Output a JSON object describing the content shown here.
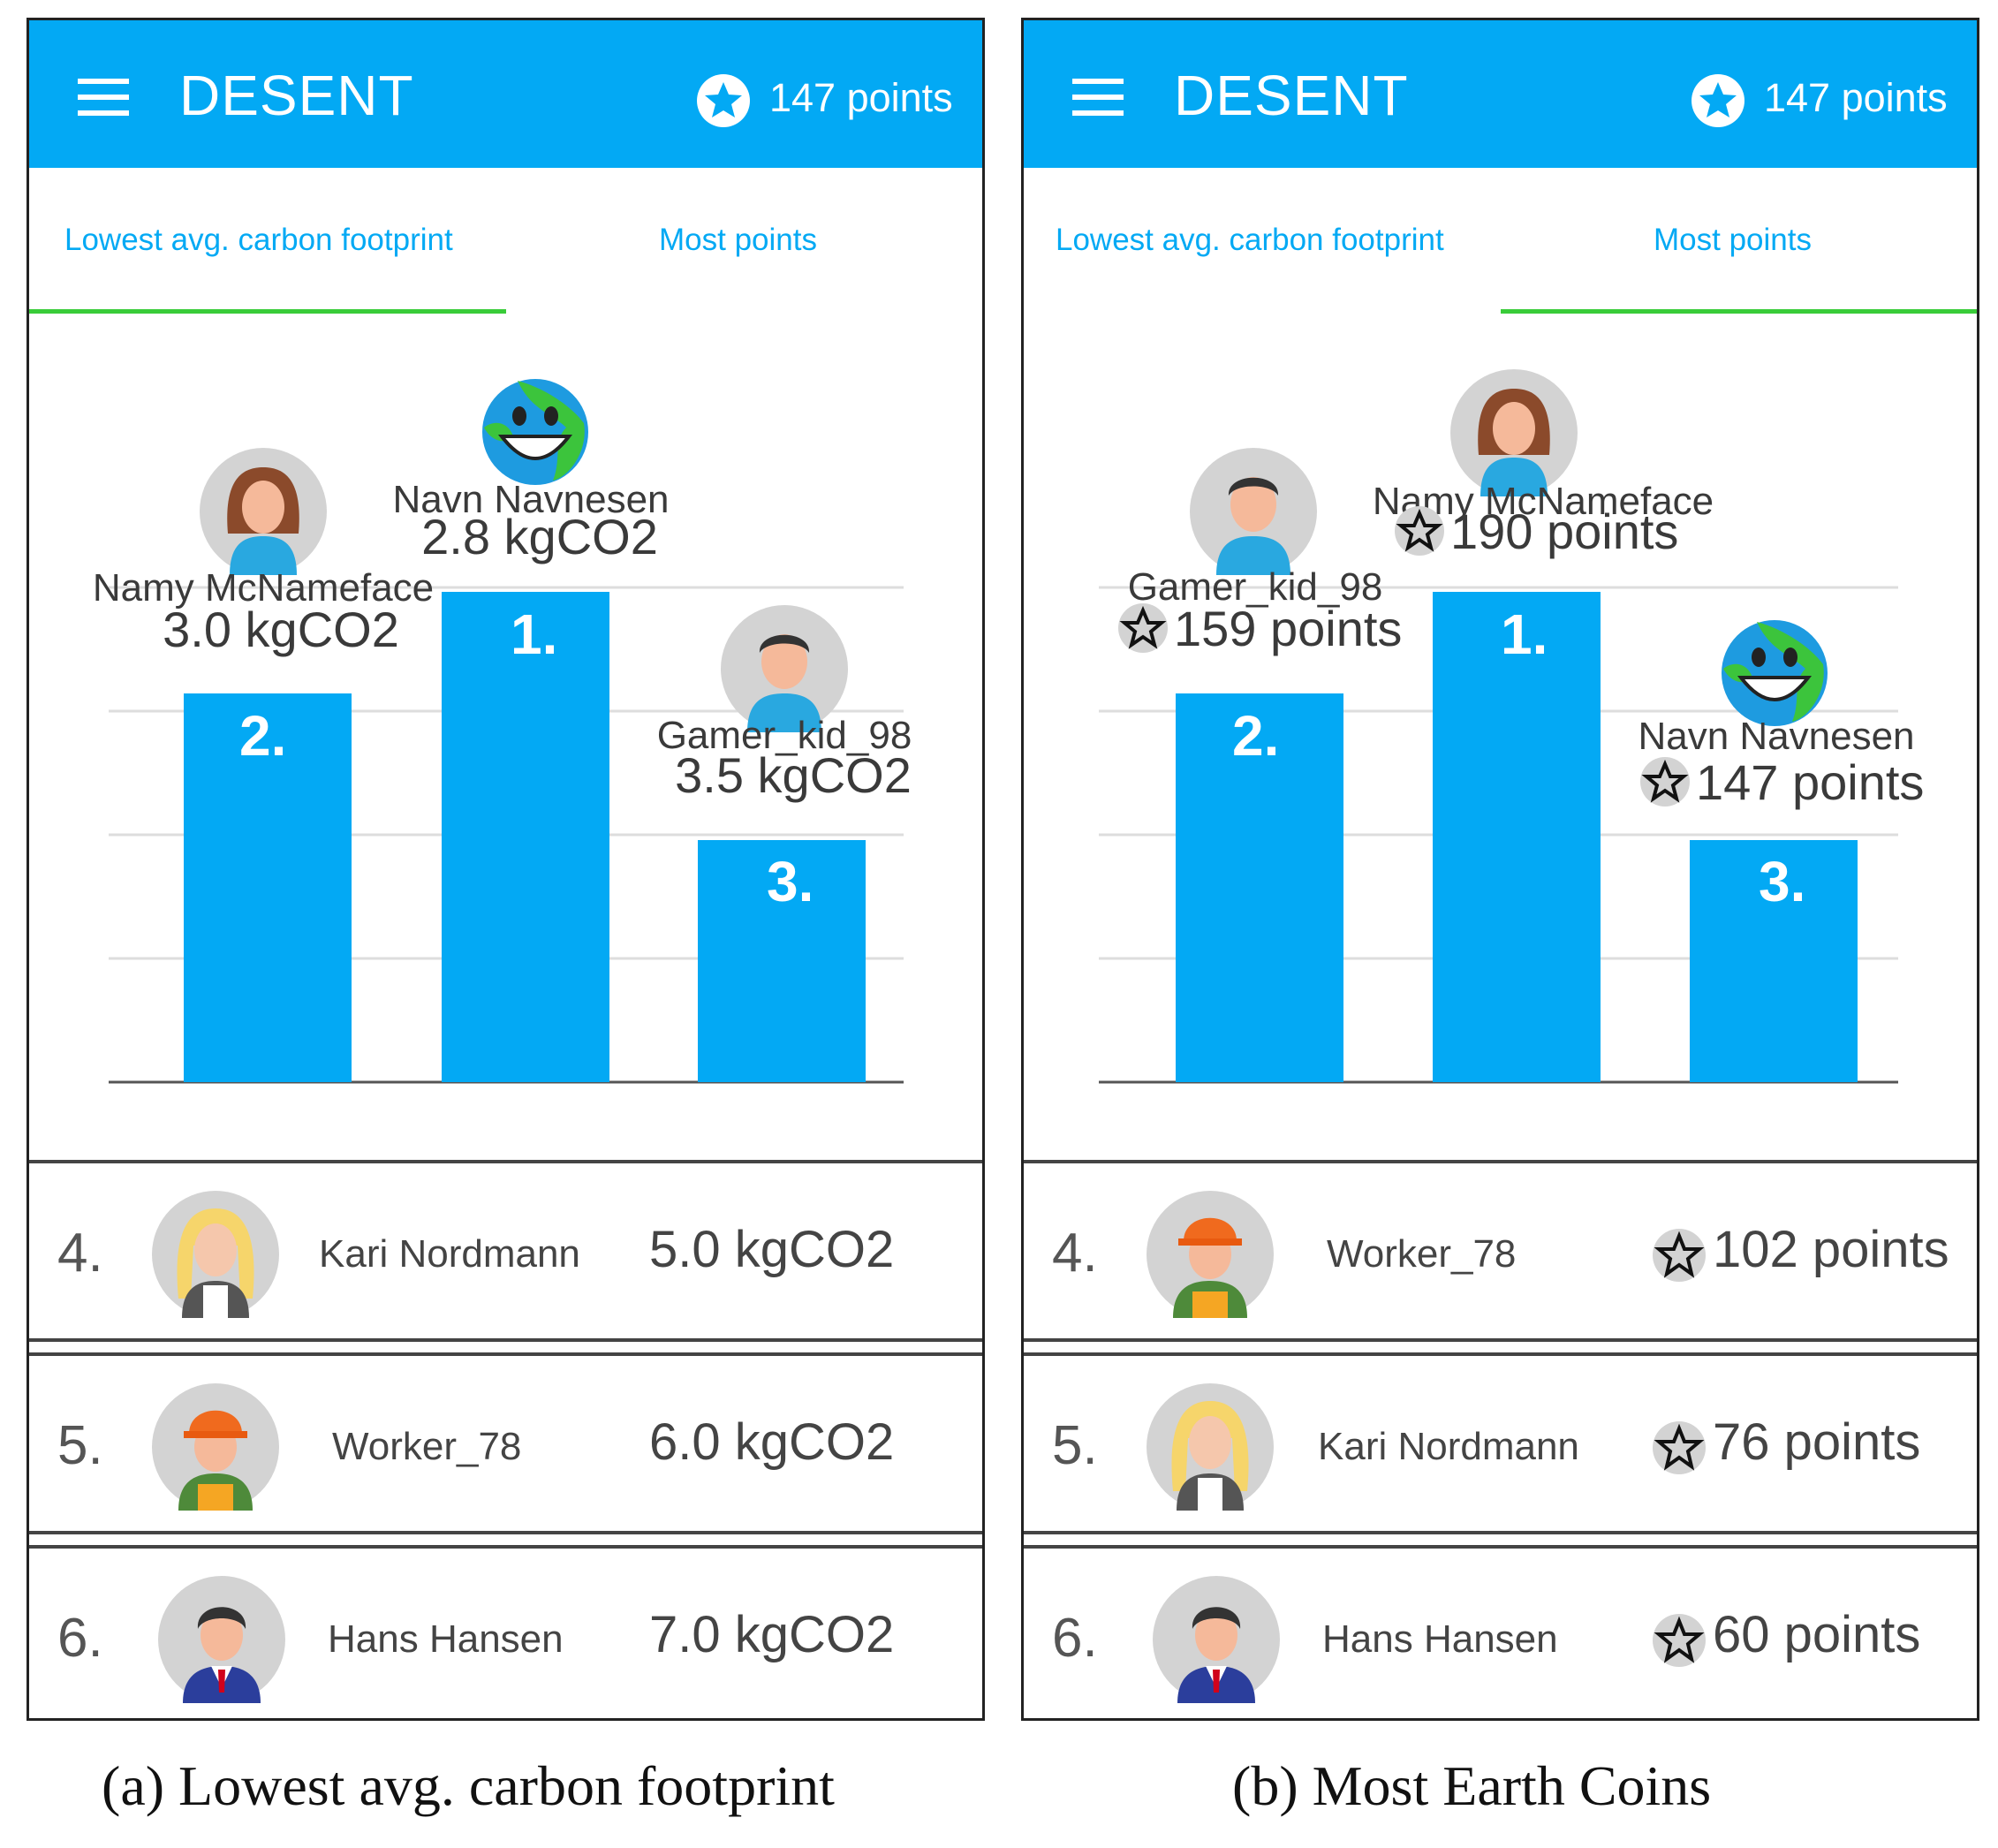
{
  "panels": [
    {
      "id": "a",
      "app_title": "DESENT",
      "user_points": "147 points",
      "tabs": [
        {
          "label": "Lowest avg. carbon footprint",
          "active": true
        },
        {
          "label": "Most points",
          "active": false
        }
      ],
      "podium": [
        {
          "rank": "1.",
          "name": "Navn Navnesen",
          "value": "2.8 kgCO2",
          "avatar": "earth-avatar"
        },
        {
          "rank": "2.",
          "name": "Namy McNameface",
          "value": "3.0 kgCO2",
          "avatar": "woman-avatar"
        },
        {
          "rank": "3.",
          "name": "Gamer_kid_98",
          "value": "3.5 kgCO2",
          "avatar": "boy-avatar"
        }
      ],
      "list": [
        {
          "rank": "4.",
          "name": "Kari Nordmann",
          "value": "5.0 kgCO2",
          "avatar": "blonde-woman-avatar"
        },
        {
          "rank": "5.",
          "name": "Worker_78",
          "value": "6.0 kgCO2",
          "avatar": "worker-avatar"
        },
        {
          "rank": "6.",
          "name": "Hans Hansen",
          "value": "7.0 kgCO2",
          "avatar": "businessman-avatar"
        }
      ],
      "caption": "(a) Lowest avg. carbon footprint"
    },
    {
      "id": "b",
      "app_title": "DESENT",
      "user_points": "147 points",
      "tabs": [
        {
          "label": "Lowest avg. carbon footprint",
          "active": false
        },
        {
          "label": "Most points",
          "active": true
        }
      ],
      "podium": [
        {
          "rank": "1.",
          "name": "Namy McNameface",
          "value": "190 points",
          "avatar": "woman-avatar"
        },
        {
          "rank": "2.",
          "name": "Gamer_kid_98",
          "value": "159 points",
          "avatar": "boy-avatar"
        },
        {
          "rank": "3.",
          "name": "Navn Navnesen",
          "value": "147 points",
          "avatar": "earth-avatar"
        }
      ],
      "list": [
        {
          "rank": "4.",
          "name": "Worker_78",
          "value": "102 points",
          "avatar": "worker-avatar"
        },
        {
          "rank": "5.",
          "name": "Kari Nordmann",
          "value": "76 points",
          "avatar": "blonde-woman-avatar"
        },
        {
          "rank": "6.",
          "name": "Hans Hansen",
          "value": "60 points",
          "avatar": "businessman-avatar"
        }
      ],
      "caption": "(b) Most Earth Coins"
    }
  ],
  "colors": {
    "appbar": "#03A9F4",
    "bar": "#03A9F4",
    "tab_text": "#03A9F4",
    "tab_indicator": "#39CC39",
    "avatar_bg": "#D3D3D3",
    "gridline": "#DDDDDD"
  }
}
